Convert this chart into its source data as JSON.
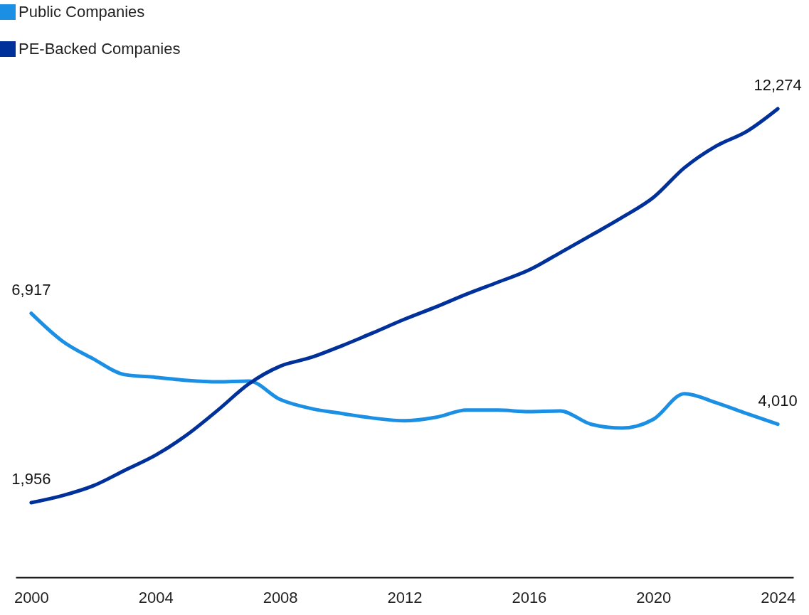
{
  "chart_data": {
    "type": "line",
    "x": [
      2000,
      2001,
      2002,
      2003,
      2004,
      2005,
      2006,
      2007,
      2008,
      2009,
      2010,
      2011,
      2012,
      2013,
      2014,
      2015,
      2016,
      2017,
      2018,
      2019,
      2020,
      2021,
      2022,
      2023,
      2024
    ],
    "series": [
      {
        "name": "Public Companies",
        "color": "#1b8fe3",
        "values": [
          6917,
          6190,
          5720,
          5310,
          5240,
          5160,
          5120,
          5140,
          4660,
          4420,
          4290,
          4170,
          4100,
          4190,
          4380,
          4380,
          4340,
          4360,
          4010,
          3910,
          4140,
          4810,
          4580,
          4290,
          4010
        ],
        "value_labels": [
          "6,917",
          null,
          null,
          null,
          null,
          null,
          null,
          null,
          null,
          null,
          null,
          null,
          null,
          null,
          null,
          null,
          null,
          null,
          null,
          null,
          null,
          null,
          null,
          null,
          "4,010"
        ]
      },
      {
        "name": "PE-Backed Companies",
        "color": "#00309a",
        "values": [
          1956,
          2140,
          2400,
          2800,
          3200,
          3730,
          4380,
          5070,
          5530,
          5760,
          6070,
          6410,
          6760,
          7080,
          7420,
          7730,
          8050,
          8500,
          8960,
          9430,
          9950,
          10730,
          11290,
          11680,
          12274
        ],
        "value_labels": [
          "1,956",
          null,
          null,
          null,
          null,
          null,
          null,
          null,
          null,
          null,
          null,
          null,
          null,
          null,
          null,
          null,
          null,
          null,
          null,
          null,
          null,
          null,
          null,
          null,
          "12,274"
        ]
      }
    ],
    "xlim": [
      1999.5,
      2024.5
    ],
    "xticks": [
      2000,
      2004,
      2008,
      2012,
      2016,
      2020,
      2024
    ],
    "tick_labels": "x",
    "legend": "top left",
    "marker": "none",
    "line_style": "solid",
    "grid": false
  }
}
